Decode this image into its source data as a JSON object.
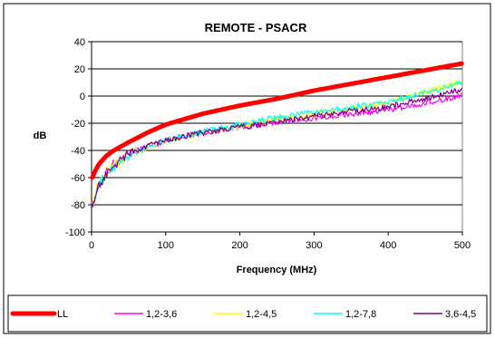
{
  "chart_data": {
    "type": "line",
    "title": "REMOTE - PSACR",
    "xlabel": "Frequency (MHz)",
    "ylabel": "dB",
    "xlim": [
      0,
      500
    ],
    "ylim": [
      -100,
      40
    ],
    "x_ticks": [
      0,
      100,
      200,
      300,
      400,
      500
    ],
    "y_ticks": [
      -100,
      -80,
      -60,
      -40,
      -20,
      0,
      20,
      40
    ],
    "grid": "horizontal",
    "legend_position": "bottom",
    "series": [
      {
        "name": "LL",
        "color": "#ff0000",
        "x": [
          1,
          5,
          10,
          20,
          30,
          50,
          75,
          100,
          150,
          200,
          250,
          300,
          350,
          400,
          450,
          500
        ],
        "y": [
          -60,
          -55,
          -50,
          -44,
          -40,
          -34,
          -27,
          -21,
          -13,
          -7,
          -2,
          4,
          9,
          14,
          19,
          24
        ]
      },
      {
        "name": "1,2-3,6",
        "color": "#ff00ff",
        "x": [
          1,
          5,
          10,
          20,
          30,
          50,
          75,
          100,
          150,
          200,
          250,
          300,
          350,
          400,
          450,
          500
        ],
        "y": [
          -82,
          -72,
          -64,
          -56,
          -50,
          -43,
          -37,
          -33,
          -27,
          -23,
          -19,
          -16,
          -13,
          -10,
          -5,
          0
        ]
      },
      {
        "name": "1,2-4,5",
        "color": "#ffff00",
        "x": [
          1,
          5,
          10,
          20,
          30,
          50,
          75,
          100,
          150,
          200,
          250,
          300,
          350,
          400,
          450,
          500
        ],
        "y": [
          -80,
          -71,
          -64,
          -56,
          -51,
          -43,
          -38,
          -33,
          -27,
          -22,
          -17,
          -13,
          -9,
          -5,
          3,
          11
        ]
      },
      {
        "name": "1,2-7,8",
        "color": "#00ffff",
        "x": [
          1,
          5,
          10,
          20,
          30,
          50,
          75,
          100,
          150,
          200,
          250,
          300,
          350,
          400,
          450,
          500
        ],
        "y": [
          -83,
          -73,
          -65,
          -57,
          -52,
          -44,
          -38,
          -33,
          -26,
          -21,
          -16,
          -12,
          -8,
          -5,
          3,
          10
        ]
      },
      {
        "name": "3,6-4,5",
        "color": "#800080",
        "x": [
          1,
          5,
          10,
          20,
          30,
          50,
          75,
          100,
          150,
          200,
          250,
          300,
          350,
          400,
          450,
          500
        ],
        "y": [
          -84,
          -74,
          -66,
          -57,
          -51,
          -43,
          -37,
          -32,
          -27,
          -23,
          -19,
          -15,
          -11,
          -8,
          -2,
          5
        ]
      }
    ]
  }
}
